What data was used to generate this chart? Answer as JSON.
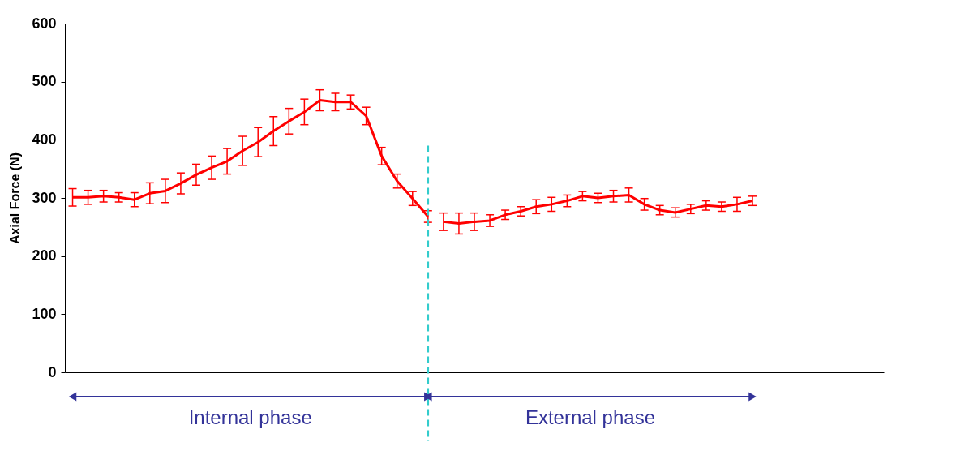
{
  "chart_data": {
    "type": "line",
    "ylabel": "Axial Force (N)",
    "categories": [
      null,
      null,
      null,
      null,
      null,
      null,
      null,
      null,
      null,
      null,
      null,
      null,
      null,
      null,
      null,
      null,
      null,
      null,
      null,
      null,
      null,
      null,
      null,
      null,
      null,
      null,
      null,
      null,
      null,
      null,
      null,
      null,
      null,
      null,
      null,
      null,
      null,
      null,
      null,
      null,
      null,
      null,
      null,
      null,
      null,
      null,
      null,
      null,
      null,
      null,
      null,
      null,
      null
    ],
    "series": [
      {
        "color": "#ff0000",
        "values": [
          301,
          301,
          303,
          301,
          297,
          308,
          312,
          325,
          340,
          352,
          363,
          381,
          396,
          415,
          432,
          448,
          468,
          465,
          465,
          441,
          372,
          329,
          299,
          268,
          null,
          null,
          null,
          null,
          null,
          null,
          null,
          null,
          null,
          null,
          null,
          null,
          null,
          null,
          null,
          null,
          null,
          null,
          null,
          null,
          null,
          null,
          null,
          null,
          null,
          null,
          null,
          null,
          null
        ],
        "errors": [
          15,
          12,
          10,
          8,
          12,
          18,
          20,
          18,
          18,
          20,
          22,
          25,
          25,
          25,
          22,
          22,
          18,
          15,
          12,
          15,
          15,
          12,
          12,
          10,
          null,
          null,
          null,
          null,
          null,
          null,
          null,
          null,
          null,
          null,
          null,
          null,
          null,
          null,
          null,
          null,
          null,
          null,
          null,
          null,
          null,
          null,
          null,
          null,
          null,
          null,
          null,
          null,
          null
        ]
      },
      {
        "color": "#ff0000",
        "values": [
          null,
          null,
          null,
          null,
          null,
          null,
          null,
          null,
          null,
          null,
          null,
          null,
          null,
          null,
          null,
          null,
          null,
          null,
          null,
          null,
          null,
          null,
          null,
          null,
          259,
          256,
          259,
          261,
          271,
          277,
          285,
          289,
          295,
          303,
          300,
          303,
          305,
          289,
          279,
          275,
          281,
          287,
          285,
          289,
          295,
          null,
          null,
          null,
          null,
          null,
          null,
          null,
          null
        ],
        "errors": [
          null,
          null,
          null,
          null,
          null,
          null,
          null,
          null,
          null,
          null,
          null,
          null,
          null,
          null,
          null,
          null,
          null,
          null,
          null,
          null,
          null,
          null,
          null,
          null,
          15,
          18,
          15,
          10,
          8,
          8,
          12,
          12,
          10,
          8,
          8,
          10,
          12,
          10,
          8,
          8,
          8,
          8,
          8,
          12,
          8,
          null,
          null,
          null,
          null,
          null,
          null,
          null,
          null
        ]
      }
    ],
    "ylim": [
      0,
      600
    ],
    "yticks": [
      0,
      100,
      200,
      300,
      400,
      500,
      600
    ],
    "tick_labels": "y",
    "grid": false,
    "marker": "none",
    "line_style": "solid",
    "annotations": [
      "Internal phase",
      "External phase"
    ]
  }
}
